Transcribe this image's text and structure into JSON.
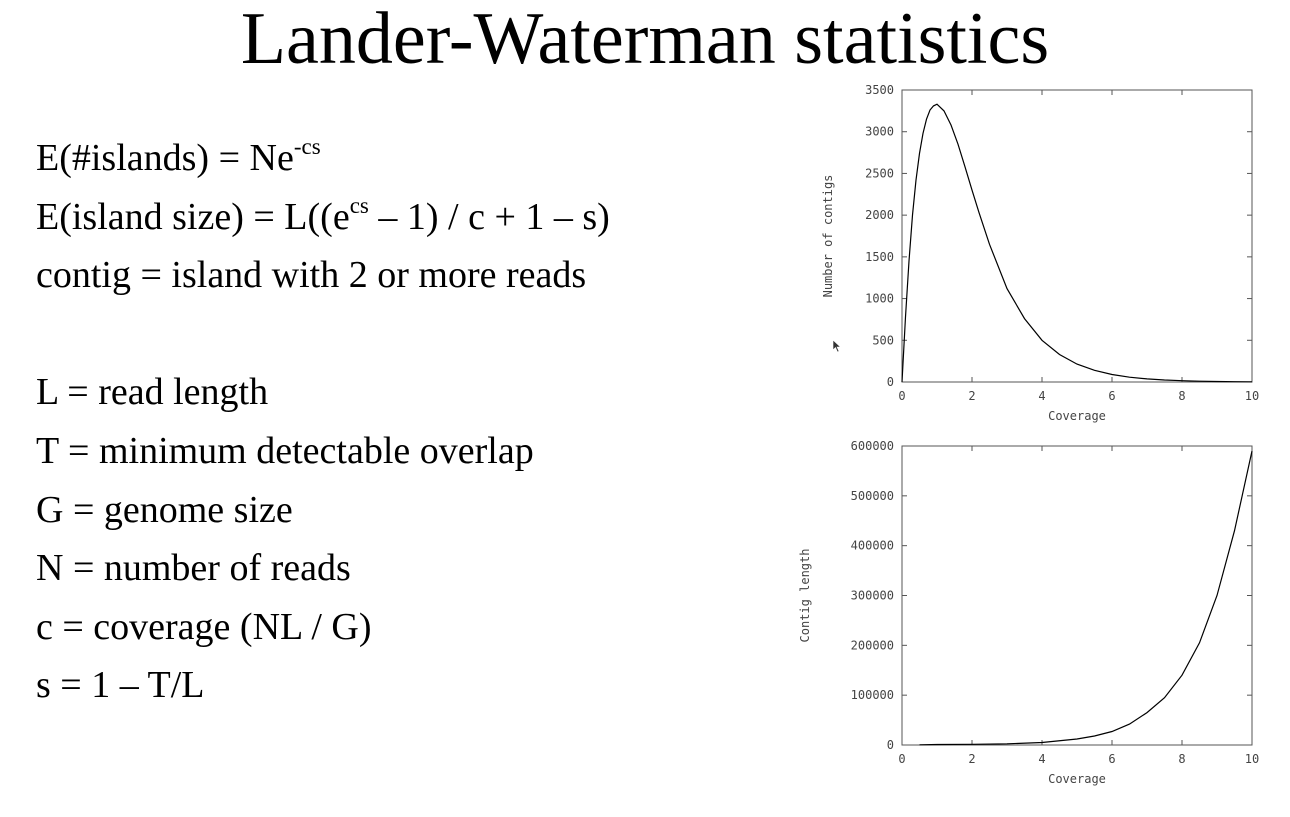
{
  "title": "Lander-Waterman statistics",
  "equations": {
    "islands": {
      "lhs": "E(#islands) = Ne",
      "exp": "-cs"
    },
    "island_size": {
      "pre": "E(island size) = L((e",
      "exp": "cs",
      "post": " – 1) / c + 1 – s)"
    },
    "contig": "contig = island with 2 or more reads"
  },
  "definitions": [
    "L = read length",
    "T = minimum detectable overlap",
    "G = genome size",
    "N = number of reads",
    "c = coverage (NL / G)",
    "s = 1 – T/L"
  ],
  "chart_data": [
    {
      "type": "line",
      "title": "",
      "xlabel": "Coverage",
      "ylabel": "Number of contigs",
      "xlim": [
        0,
        10
      ],
      "ylim": [
        0,
        3500
      ],
      "xticks": [
        0,
        2,
        4,
        6,
        8,
        10
      ],
      "yticks": [
        0,
        500,
        1000,
        1500,
        2000,
        2500,
        3000,
        3500
      ],
      "grid": false,
      "x": [
        0,
        0.1,
        0.2,
        0.3,
        0.4,
        0.5,
        0.6,
        0.7,
        0.8,
        0.9,
        1.0,
        1.2,
        1.4,
        1.6,
        1.8,
        2.0,
        2.2,
        2.5,
        3.0,
        3.5,
        4.0,
        4.5,
        5.0,
        5.5,
        6.0,
        6.5,
        7.0,
        7.5,
        8.0,
        8.5,
        9.0,
        9.5,
        10.0
      ],
      "y": [
        0,
        780,
        1450,
        2000,
        2420,
        2740,
        2980,
        3150,
        3260,
        3310,
        3330,
        3250,
        3080,
        2850,
        2580,
        2300,
        2030,
        1650,
        1120,
        760,
        500,
        330,
        215,
        140,
        90,
        58,
        37,
        24,
        15,
        10,
        6,
        4,
        2
      ]
    },
    {
      "type": "line",
      "title": "",
      "xlabel": "Coverage",
      "ylabel": "Contig length",
      "xlim": [
        0,
        10
      ],
      "ylim": [
        0,
        600000
      ],
      "xticks": [
        0,
        2,
        4,
        6,
        8,
        10
      ],
      "yticks": [
        0,
        100000,
        200000,
        300000,
        400000,
        500000,
        600000
      ],
      "grid": false,
      "x": [
        0.5,
        1,
        2,
        3,
        4,
        5,
        5.5,
        6,
        6.5,
        7,
        7.5,
        8,
        8.5,
        9,
        9.5,
        10
      ],
      "y": [
        500,
        1000,
        1500,
        2500,
        5000,
        12000,
        18000,
        27000,
        42000,
        65000,
        95000,
        140000,
        205000,
        300000,
        430000,
        590000
      ]
    }
  ]
}
